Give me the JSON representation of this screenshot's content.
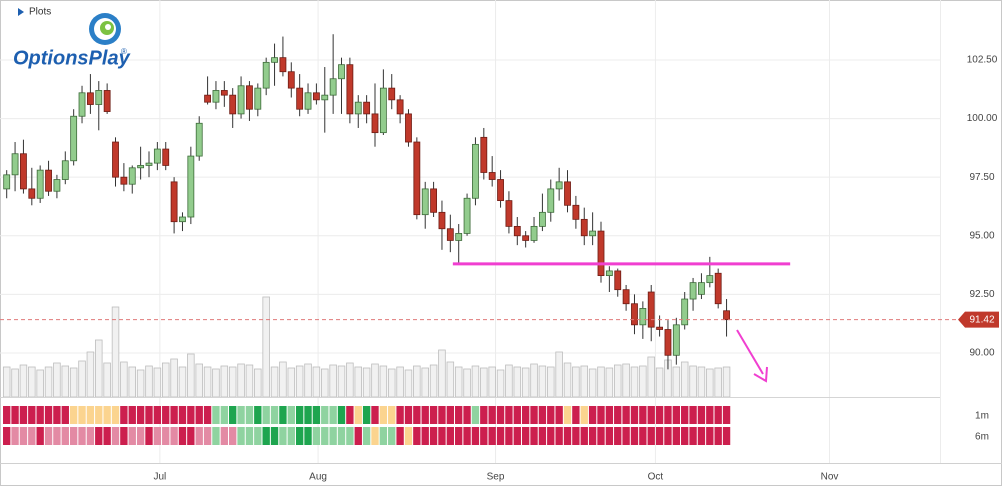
{
  "panel_label": "Plots",
  "logo": {
    "text": "OptionsPlay",
    "mark": "®"
  },
  "chart_data": {
    "type": "candlestick",
    "xlim": [
      -0.8,
      111.5
    ],
    "xticks": [
      {
        "value": 18.3,
        "label": "Jul"
      },
      {
        "value": 37.2,
        "label": "Aug"
      },
      {
        "value": 58.4,
        "label": "Sep"
      },
      {
        "value": 77.5,
        "label": "Oct"
      },
      {
        "value": 98.3,
        "label": "Nov"
      }
    ],
    "ylim": [
      88.12,
      105.06
    ],
    "yticks": [
      {
        "value": 90,
        "label": "90.00"
      },
      {
        "value": 92.5,
        "label": "92.50"
      },
      {
        "value": 95,
        "label": "95.00"
      },
      {
        "value": 97.5,
        "label": "97.50"
      },
      {
        "value": 100,
        "label": "100.00"
      },
      {
        "value": 102.5,
        "label": "102.50"
      }
    ],
    "grid": true,
    "up_color": "#92cc8d",
    "down_color": "#c0392b",
    "ohlc": [
      [
        97.0,
        97.8,
        96.6,
        97.6
      ],
      [
        97.6,
        99.0,
        96.9,
        98.5
      ],
      [
        98.5,
        99.1,
        96.8,
        97.0
      ],
      [
        97.0,
        97.9,
        96.3,
        96.6
      ],
      [
        96.6,
        98.0,
        96.4,
        97.8
      ],
      [
        97.8,
        98.2,
        96.7,
        96.9
      ],
      [
        96.9,
        97.6,
        96.6,
        97.4
      ],
      [
        97.4,
        98.6,
        97.2,
        98.2
      ],
      [
        98.2,
        100.4,
        98.0,
        100.1
      ],
      [
        100.1,
        101.4,
        99.8,
        101.1
      ],
      [
        101.1,
        101.9,
        100.2,
        100.6
      ],
      [
        100.6,
        101.6,
        99.5,
        101.2
      ],
      [
        101.2,
        101.5,
        100.2,
        100.3
      ],
      [
        99.0,
        99.2,
        97.1,
        97.5
      ],
      [
        97.5,
        98.1,
        96.9,
        97.2
      ],
      [
        97.2,
        98.0,
        96.8,
        97.9
      ],
      [
        97.9,
        98.8,
        97.4,
        98.0
      ],
      [
        98.0,
        98.6,
        97.5,
        98.1
      ],
      [
        98.1,
        99.0,
        97.8,
        98.7
      ],
      [
        98.7,
        99.0,
        97.8,
        98.0
      ],
      [
        97.3,
        97.5,
        95.1,
        95.6
      ],
      [
        95.6,
        96.0,
        95.2,
        95.8
      ],
      [
        95.8,
        98.8,
        95.5,
        98.4
      ],
      [
        98.4,
        100.1,
        98.2,
        99.8
      ],
      [
        101.0,
        101.8,
        100.6,
        100.7
      ],
      [
        100.7,
        101.6,
        100.4,
        101.2
      ],
      [
        101.2,
        101.6,
        100.5,
        101.0
      ],
      [
        101.0,
        101.3,
        99.6,
        100.2
      ],
      [
        100.2,
        101.8,
        100.0,
        101.4
      ],
      [
        101.4,
        101.6,
        99.9,
        100.4
      ],
      [
        100.4,
        101.5,
        100.1,
        101.3
      ],
      [
        101.3,
        102.6,
        101.0,
        102.4
      ],
      [
        102.4,
        103.2,
        101.4,
        102.6
      ],
      [
        102.6,
        103.5,
        101.8,
        102.0
      ],
      [
        102.0,
        102.4,
        100.9,
        101.3
      ],
      [
        101.3,
        101.9,
        100.1,
        100.4
      ],
      [
        100.4,
        101.5,
        100.2,
        101.1
      ],
      [
        101.1,
        101.5,
        100.6,
        100.8
      ],
      [
        100.8,
        102.2,
        99.4,
        101.0
      ],
      [
        101.0,
        103.6,
        100.2,
        101.7
      ],
      [
        101.7,
        102.6,
        100.2,
        102.3
      ],
      [
        102.3,
        102.6,
        99.8,
        100.2
      ],
      [
        100.2,
        101.0,
        99.6,
        100.7
      ],
      [
        100.7,
        101.0,
        99.8,
        100.2
      ],
      [
        100.2,
        101.5,
        98.8,
        99.4
      ],
      [
        99.4,
        102.1,
        99.3,
        101.3
      ],
      [
        101.3,
        101.9,
        100.4,
        100.8
      ],
      [
        100.8,
        101.0,
        99.8,
        100.2
      ],
      [
        100.2,
        100.4,
        98.8,
        99.0
      ],
      [
        99.0,
        99.2,
        95.7,
        95.9
      ],
      [
        95.9,
        97.3,
        95.3,
        97.0
      ],
      [
        97.0,
        97.3,
        95.8,
        96.0
      ],
      [
        96.0,
        96.5,
        94.4,
        95.3
      ],
      [
        95.3,
        95.9,
        94.3,
        94.8
      ],
      [
        94.8,
        95.5,
        93.8,
        95.1
      ],
      [
        95.1,
        96.8,
        95.0,
        96.6
      ],
      [
        96.6,
        99.2,
        96.3,
        98.9
      ],
      [
        99.2,
        99.6,
        97.4,
        97.7
      ],
      [
        97.7,
        98.4,
        97.1,
        97.4
      ],
      [
        97.4,
        97.8,
        96.2,
        96.5
      ],
      [
        96.5,
        96.9,
        95.1,
        95.4
      ],
      [
        95.4,
        95.8,
        94.6,
        95.0
      ],
      [
        95.0,
        95.2,
        94.5,
        94.8
      ],
      [
        94.8,
        95.8,
        94.7,
        95.4
      ],
      [
        95.4,
        96.8,
        95.2,
        96.0
      ],
      [
        96.0,
        97.4,
        95.6,
        97.0
      ],
      [
        97.0,
        97.9,
        96.5,
        97.3
      ],
      [
        97.3,
        97.8,
        96.0,
        96.3
      ],
      [
        96.3,
        96.7,
        95.3,
        95.7
      ],
      [
        95.7,
        96.2,
        94.6,
        95.0
      ],
      [
        95.0,
        96.0,
        94.6,
        95.2
      ],
      [
        95.2,
        95.6,
        93.0,
        93.3
      ],
      [
        93.3,
        93.7,
        92.6,
        93.5
      ],
      [
        93.5,
        93.6,
        92.4,
        92.7
      ],
      [
        92.7,
        92.9,
        91.8,
        92.1
      ],
      [
        92.1,
        92.5,
        90.8,
        91.2
      ],
      [
        91.2,
        92.2,
        90.6,
        91.9
      ],
      [
        92.6,
        92.9,
        90.5,
        91.1
      ],
      [
        91.1,
        91.6,
        90.7,
        91.0
      ],
      [
        91.0,
        91.4,
        89.3,
        89.9
      ],
      [
        89.9,
        91.5,
        89.5,
        91.2
      ],
      [
        91.2,
        92.6,
        91.0,
        92.3
      ],
      [
        92.3,
        93.2,
        91.8,
        93.0
      ],
      [
        92.5,
        93.4,
        92.3,
        93.0
      ],
      [
        93.0,
        94.1,
        92.8,
        93.3
      ],
      [
        93.4,
        93.6,
        91.9,
        92.1
      ],
      [
        91.8,
        92.3,
        90.7,
        91.42
      ]
    ],
    "volume": {
      "ylim": [
        0,
        100
      ],
      "color": "#f1f1f1",
      "values": [
        30,
        28,
        32,
        30,
        27,
        30,
        34,
        31,
        29,
        36,
        45,
        57,
        34,
        90,
        35,
        30,
        27,
        31,
        29,
        34,
        38,
        30,
        43,
        33,
        30,
        28,
        31,
        30,
        33,
        32,
        28,
        100,
        30,
        35,
        29,
        31,
        33,
        30,
        28,
        32,
        31,
        34,
        30,
        29,
        33,
        31,
        28,
        30,
        27,
        31,
        29,
        32,
        47,
        35,
        30,
        28,
        31,
        29,
        30,
        27,
        32,
        30,
        29,
        33,
        31,
        30,
        45,
        34,
        30,
        31,
        28,
        30,
        29,
        32,
        33,
        30,
        31,
        40,
        29,
        37,
        30,
        35,
        31,
        30,
        28,
        29,
        30
      ]
    },
    "support_line": {
      "value": 93.8,
      "x": [
        53.3,
        93.6
      ],
      "color": "#f03fd0"
    },
    "last_price": 91.42,
    "heatmap": {
      "colors": [
        "#cc1f4e",
        "#e38aa4",
        "#fbd48f",
        "#8fd3a0",
        "#1ea54f"
      ],
      "rows": [
        {
          "name": "1m",
          "values": [
            0,
            0,
            0,
            0,
            0,
            0,
            0,
            0,
            2,
            2,
            2,
            2,
            2,
            2,
            0,
            0,
            0,
            0,
            0,
            0,
            0,
            0,
            0,
            0,
            0,
            3,
            3,
            4,
            3,
            3,
            4,
            3,
            3,
            4,
            3,
            4,
            4,
            4,
            3,
            3,
            4,
            0,
            2,
            4,
            0,
            2,
            2,
            0,
            0,
            0,
            0,
            0,
            0,
            0,
            0,
            0,
            3,
            0,
            0,
            0,
            0,
            0,
            0,
            0,
            0,
            0,
            0,
            2,
            0,
            2,
            0,
            0,
            0,
            0,
            0,
            0,
            0,
            0,
            0,
            0,
            0,
            0,
            0,
            0,
            0,
            0,
            0
          ]
        },
        {
          "name": "6m",
          "values": [
            0,
            1,
            1,
            1,
            0,
            1,
            1,
            1,
            1,
            1,
            1,
            0,
            0,
            1,
            0,
            1,
            1,
            0,
            1,
            1,
            1,
            0,
            0,
            1,
            1,
            3,
            1,
            1,
            3,
            3,
            3,
            4,
            4,
            3,
            3,
            4,
            4,
            3,
            3,
            3,
            3,
            3,
            0,
            3,
            2,
            3,
            3,
            0,
            2,
            0,
            0,
            0,
            0,
            0,
            0,
            0,
            0,
            0,
            0,
            0,
            0,
            0,
            0,
            0,
            0,
            0,
            0,
            0,
            0,
            0,
            0,
            0,
            0,
            0,
            0,
            0,
            0,
            0,
            0,
            0,
            0,
            0,
            0,
            0,
            0,
            0,
            0
          ]
        }
      ]
    }
  }
}
